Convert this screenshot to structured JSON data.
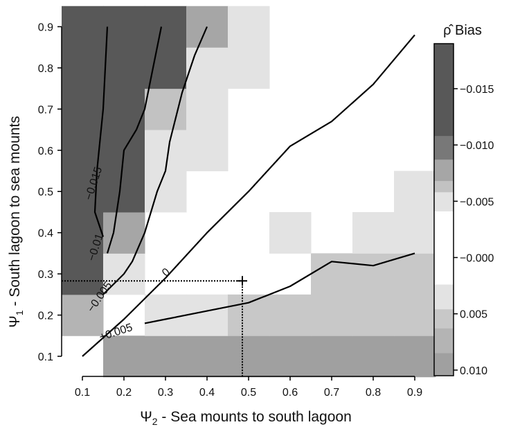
{
  "chart_data": {
    "type": "heatmap",
    "title": "",
    "xlabel": "Ψ",
    "xlabel_sub": "2",
    "xlabel_rest": " - Sea mounts to south lagoon",
    "ylabel": "Ψ",
    "ylabel_sub": "1",
    "ylabel_rest": " - South lagoon to sea mounts",
    "x_ticks": [
      "0.1",
      "0.2",
      "0.3",
      "0.4",
      "0.5",
      "0.6",
      "0.7",
      "0.8",
      "0.9"
    ],
    "y_ticks": [
      "0.1",
      "0.2",
      "0.3",
      "0.4",
      "0.5",
      "0.6",
      "0.7",
      "0.8",
      "0.9"
    ],
    "xlim": [
      0.05,
      0.95
    ],
    "ylim": [
      0.05,
      0.95
    ],
    "grid": false,
    "colorbar": {
      "title": "ρ̂ Bias",
      "tick_values": [
        -0.015,
        -0.01,
        -0.005,
        0.0,
        0.005,
        0.01
      ],
      "tick_labels": [
        "−0.015",
        "−0.010",
        "−0.005",
        "−0.000",
        "0.005",
        "0.010"
      ],
      "range": [
        -0.019,
        0.0105
      ],
      "levels": [
        {
          "from": -0.019,
          "to": -0.0108,
          "color": "#585858"
        },
        {
          "from": -0.0108,
          "to": -0.0087,
          "color": "#787878"
        },
        {
          "from": -0.0087,
          "to": -0.0068,
          "color": "#a6a6a6"
        },
        {
          "from": -0.0068,
          "to": -0.0058,
          "color": "#c2c2c2"
        },
        {
          "from": -0.0058,
          "to": -0.0041,
          "color": "#e3e3e3"
        },
        {
          "from": -0.0041,
          "to": 0.0024,
          "color": "#ffffff"
        },
        {
          "from": 0.0024,
          "to": 0.0046,
          "color": "#e3e3e3"
        },
        {
          "from": 0.0046,
          "to": 0.0063,
          "color": "#c8c8c8"
        },
        {
          "from": 0.0063,
          "to": 0.0085,
          "color": "#b4b4b4"
        },
        {
          "from": 0.0085,
          "to": 0.0105,
          "color": "#a0a0a0"
        }
      ]
    },
    "grid_values": {
      "x": [
        0.1,
        0.2,
        0.3,
        0.4,
        0.5,
        0.6,
        0.7,
        0.8,
        0.9
      ],
      "y": [
        0.1,
        0.2,
        0.3,
        0.4,
        0.5,
        0.6,
        0.7,
        0.8,
        0.9
      ],
      "rows": [
        [
          0.0,
          0.01,
          0.01,
          0.01,
          0.0088,
          0.01,
          0.01,
          0.01,
          0.01
        ],
        [
          0.008,
          0.0,
          0.003,
          0.003,
          0.005,
          0.006,
          0.006,
          0.006,
          0.006
        ],
        [
          -0.017,
          -0.005,
          0.0,
          0.0,
          0.0,
          0.0,
          0.005,
          0.005,
          0.005
        ],
        [
          -0.017,
          -0.007,
          0.0,
          0.0,
          0.0,
          0.003,
          0.0,
          0.003,
          0.003
        ],
        [
          -0.017,
          -0.012,
          -0.005,
          0.0,
          0.0,
          0.0,
          0.0,
          0.0,
          0.003
        ],
        [
          -0.017,
          -0.012,
          -0.005,
          -0.005,
          0.0,
          0.0,
          0.0,
          0.0,
          0.0
        ],
        [
          -0.017,
          -0.017,
          -0.006,
          -0.005,
          0.0,
          0.0,
          0.0,
          0.0,
          0.0
        ],
        [
          -0.017,
          -0.012,
          -0.012,
          -0.005,
          -0.005,
          0.0,
          0.0,
          0.0,
          0.0
        ],
        [
          -0.017,
          -0.017,
          -0.012,
          -0.007,
          -0.005,
          0.0,
          0.0,
          0.0,
          0.0
        ]
      ]
    },
    "contours": [
      {
        "label": "−0.015",
        "points": [
          [
            0.16,
            0.9
          ],
          [
            0.155,
            0.8
          ],
          [
            0.15,
            0.7
          ],
          [
            0.135,
            0.55
          ],
          [
            0.13,
            0.45
          ],
          [
            0.15,
            0.39
          ]
        ],
        "label_at": [
          0.125,
          0.52
        ],
        "label_angle": -72
      },
      {
        "label": "−0.01",
        "points": [
          [
            0.29,
            0.9
          ],
          [
            0.27,
            0.8
          ],
          [
            0.25,
            0.7
          ],
          [
            0.23,
            0.65
          ],
          [
            0.2,
            0.6
          ],
          [
            0.19,
            0.5
          ],
          [
            0.175,
            0.4
          ],
          [
            0.16,
            0.35
          ]
        ],
        "label_at": [
          0.13,
          0.365
        ],
        "label_angle": -72
      },
      {
        "label": "−0.005",
        "points": [
          [
            0.4,
            0.9
          ],
          [
            0.37,
            0.83
          ],
          [
            0.34,
            0.74
          ],
          [
            0.31,
            0.62
          ],
          [
            0.3,
            0.55
          ],
          [
            0.28,
            0.5
          ],
          [
            0.25,
            0.4
          ],
          [
            0.22,
            0.33
          ],
          [
            0.2,
            0.3
          ],
          [
            0.18,
            0.28
          ],
          [
            0.15,
            0.25
          ]
        ],
        "label_at": [
          0.14,
          0.245
        ],
        "label_angle": -55
      },
      {
        "label": "0",
        "points": [
          [
            0.9,
            0.88
          ],
          [
            0.8,
            0.76
          ],
          [
            0.7,
            0.67
          ],
          [
            0.6,
            0.61
          ],
          [
            0.5,
            0.5
          ],
          [
            0.4,
            0.4
          ],
          [
            0.3,
            0.29
          ],
          [
            0.2,
            0.19
          ],
          [
            0.1,
            0.1
          ]
        ],
        "label_at": [
          0.3,
          0.305
        ],
        "label_angle": -40
      },
      {
        "label": "+0.005",
        "points": [
          [
            0.9,
            0.35
          ],
          [
            0.8,
            0.32
          ],
          [
            0.7,
            0.33
          ],
          [
            0.6,
            0.27
          ],
          [
            0.5,
            0.23
          ],
          [
            0.4,
            0.21
          ],
          [
            0.3,
            0.19
          ],
          [
            0.25,
            0.18
          ]
        ],
        "label_at": [
          0.18,
          0.16
        ],
        "label_angle": -18
      }
    ],
    "reference_point": {
      "x": 0.485,
      "y": 0.283
    }
  }
}
